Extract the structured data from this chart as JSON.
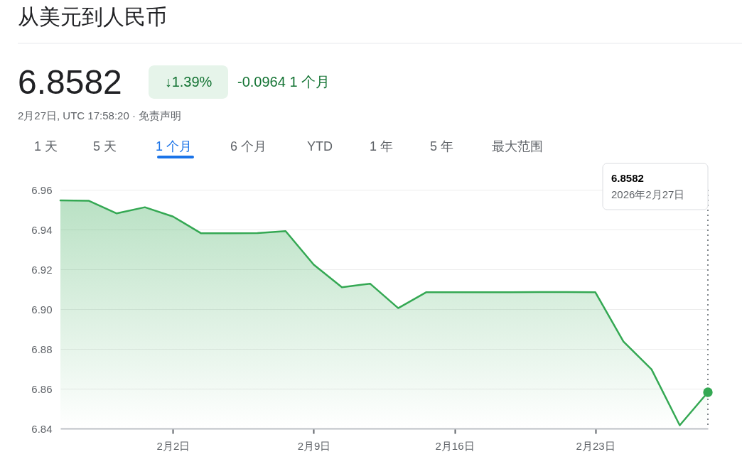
{
  "chart_data": {
    "type": "area",
    "title": "从美元到人民币",
    "categories": [
      null,
      null,
      null,
      null,
      "2月2日",
      null,
      null,
      null,
      null,
      "2月9日",
      null,
      null,
      null,
      null,
      "2月16日",
      null,
      null,
      null,
      null,
      "2月23日",
      null,
      null,
      null,
      null
    ],
    "series": [
      {
        "color": "#34a853",
        "values": [
          6.9546,
          6.9545,
          6.9481,
          6.9512,
          6.9465,
          6.9381,
          6.9381,
          6.9382,
          6.9392,
          6.9223,
          6.911,
          6.9128,
          6.9005,
          6.9085,
          6.9085,
          6.9085,
          6.9085,
          6.9086,
          6.9086,
          6.9085,
          6.8837,
          6.8697,
          6.8416,
          6.8582
        ]
      }
    ],
    "ylim": [
      6.84,
      6.96
    ],
    "yticks": [
      6.84,
      6.86,
      6.88,
      {
        "value": 6.9,
        "label": "6.90"
      },
      6.92,
      6.94,
      6.96
    ],
    "grid": "y",
    "annotations": [
      "6.8582",
      "↓1.39%",
      "-0.0964 1 个月",
      "2月27日, UTC 17:58:20 · 免责声明",
      "1 天",
      "5 天",
      "1 个月",
      "6 个月",
      "YTD",
      "1 年",
      "5 年",
      "最大范围",
      "6.8582",
      "2026年2月27日"
    ]
  }
}
